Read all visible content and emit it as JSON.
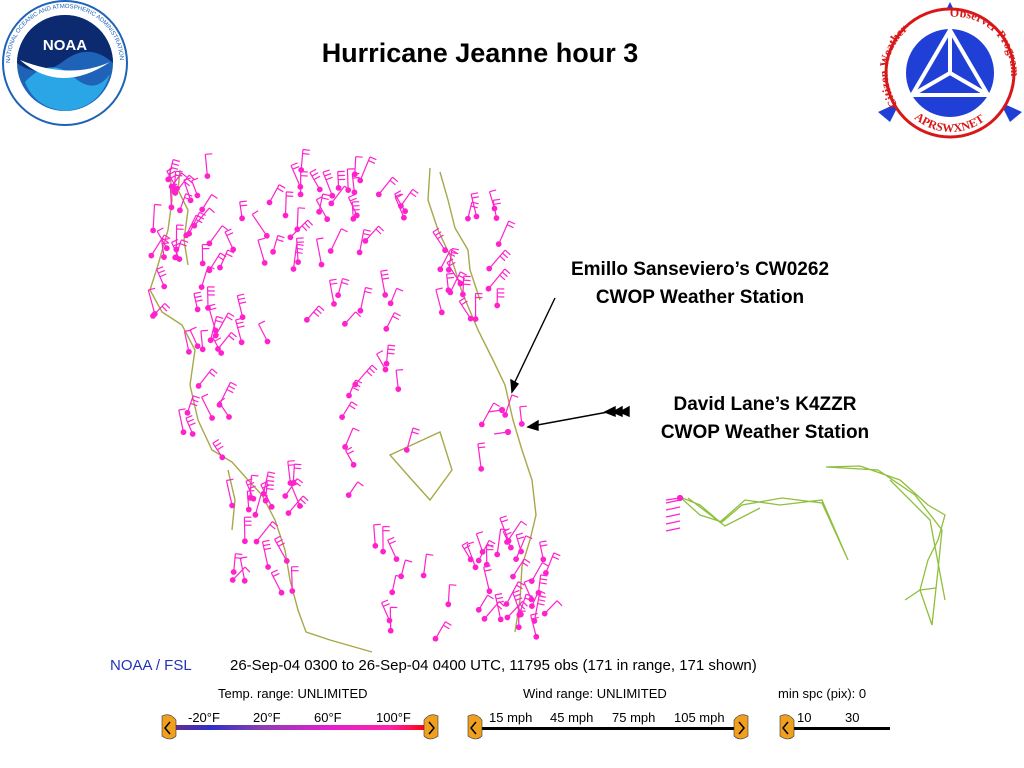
{
  "slide": {
    "title": "Hurricane Jeanne hour 3",
    "callouts": [
      {
        "line1": "Emillo Sanseviero’s CW0262",
        "line2": "CWOP Weather Station"
      },
      {
        "line1": "David Lane’s K4ZZR",
        "line2": "CWOP Weather Station"
      }
    ]
  },
  "logos": {
    "noaa": {
      "text": "NOAA",
      "ring_text": "NATIONAL OCEANIC AND ATMOSPHERIC ADMINISTRATION · U.S. DEPARTMENT OF COMMERCE"
    },
    "cwop": {
      "ring_left": "Citizen Weather",
      "ring_right": "Observer Program",
      "ring_bottom": "APRSWXNET"
    }
  },
  "footer": {
    "source": "NOAA / FSL",
    "info": "26-Sep-04 0300 to 26-Sep-04 0400 UTC, 11795 obs  (171 in range, 171 shown)",
    "temp_range": "Temp. range:  UNLIMITED",
    "wind_range": "Wind range:  UNLIMITED",
    "min_spacing": "min spc (pix): 0",
    "temp_ticks": [
      "-20°F",
      "20°F",
      "60°F",
      "100°F"
    ],
    "wind_ticks": [
      "15 mph",
      "45 mph",
      "75 mph",
      "105 mph"
    ],
    "spc_ticks": [
      "10",
      "30"
    ]
  },
  "colors": {
    "coast": "#a7a84a",
    "station": "#ff22cc",
    "bahamas": "#8fbf3c",
    "arrow": "#000000",
    "noaa_blue": "#1e63b8",
    "cwop_blue": "#1f3fd6",
    "cwop_red": "#d81818"
  }
}
